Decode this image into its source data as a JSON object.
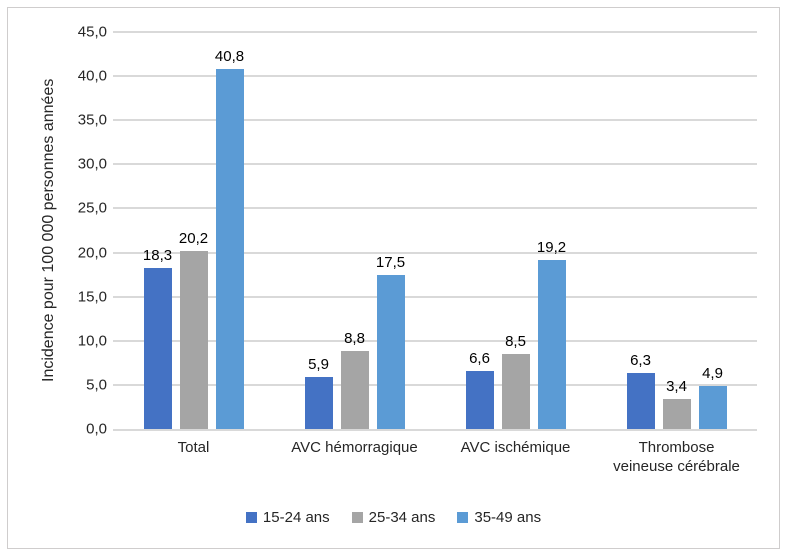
{
  "chart_data": {
    "type": "bar",
    "title": "",
    "xlabel": "",
    "ylabel": "Incidence pour 100 000 personnes années",
    "ylim": [
      0,
      45
    ],
    "ytick_step": 5,
    "ytick_labels": [
      "0,0",
      "5,0",
      "10,0",
      "15,0",
      "20,0",
      "25,0",
      "30,0",
      "35,0",
      "40,0",
      "45,0"
    ],
    "grid": true,
    "legend_position": "bottom",
    "categories": [
      "Total",
      "AVC hémorragique",
      "AVC ischémique",
      "Thrombose veineuse cérébrale"
    ],
    "categories_display": [
      "Total",
      "AVC hémorragique",
      "AVC ischémique",
      "Thrombose\nveineuse cérébrale"
    ],
    "series": [
      {
        "name": "15-24 ans",
        "color": "#4472C4",
        "values": [
          18.3,
          5.9,
          6.6,
          6.3
        ],
        "labels": [
          "18,3",
          "5,9",
          "6,6",
          "6,3"
        ]
      },
      {
        "name": "25-34 ans",
        "color": "#A5A5A5",
        "values": [
          20.2,
          8.8,
          8.5,
          3.4
        ],
        "labels": [
          "20,2",
          "8,8",
          "8,5",
          "3,4"
        ]
      },
      {
        "name": "35-49 ans",
        "color": "#5B9BD5",
        "values": [
          40.8,
          17.5,
          19.2,
          4.9
        ],
        "labels": [
          "40,8",
          "17,5",
          "19,2",
          "4,9"
        ]
      }
    ],
    "colors": {
      "gridline": "#D9D9D9",
      "axis_line": "#D9D9D9",
      "frame_border": "#CFCDCD",
      "text": "#262626"
    }
  }
}
